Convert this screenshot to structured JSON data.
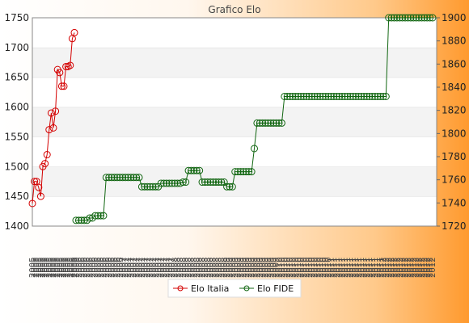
{
  "chart_data": {
    "type": "line",
    "title": "Grafico Elo",
    "ylim_left": [
      1400,
      1750
    ],
    "ylim_right": [
      1720,
      1900
    ],
    "yticks_left": [
      1400,
      1450,
      1500,
      1550,
      1600,
      1650,
      1700,
      1750
    ],
    "yticks_right": [
      1720,
      1740,
      1760,
      1780,
      1800,
      1820,
      1840,
      1860,
      1880,
      1900
    ],
    "legend_position": "bottom-center",
    "grid": "horizontal bands",
    "x_tick_label_prefixes": [
      "2005",
      "2006",
      "2007",
      "2008",
      "2009",
      "2010",
      "2011",
      "2012"
    ],
    "series": [
      {
        "name": "Elo Italia",
        "axis": "left",
        "color": "#d40000",
        "values": [
          1438,
          1475,
          1475,
          1465,
          1450,
          1500,
          1505,
          1520,
          1562,
          1590,
          1565,
          1593,
          1663,
          1658,
          1635,
          1635,
          1668,
          1668,
          1670,
          1715,
          1725
        ]
      },
      {
        "name": "Elo FIDE",
        "axis": "right",
        "color": "#116611",
        "segments": [
          {
            "value": 1725,
            "count": 5
          },
          {
            "value": 1727,
            "count": 2
          },
          {
            "value": 1729,
            "count": 4
          },
          {
            "value": 1762,
            "count": 13
          },
          {
            "value": 1754,
            "count": 7
          },
          {
            "value": 1757,
            "count": 8
          },
          {
            "value": 1758,
            "count": 2
          },
          {
            "value": 1768,
            "count": 5
          },
          {
            "value": 1758,
            "count": 9
          },
          {
            "value": 1754,
            "count": 3
          },
          {
            "value": 1767,
            "count": 7
          },
          {
            "value": 1787,
            "count": 1
          },
          {
            "value": 1809,
            "count": 10
          },
          {
            "value": 1832,
            "count": 38
          },
          {
            "value": 1900,
            "count": 17
          }
        ]
      }
    ]
  }
}
